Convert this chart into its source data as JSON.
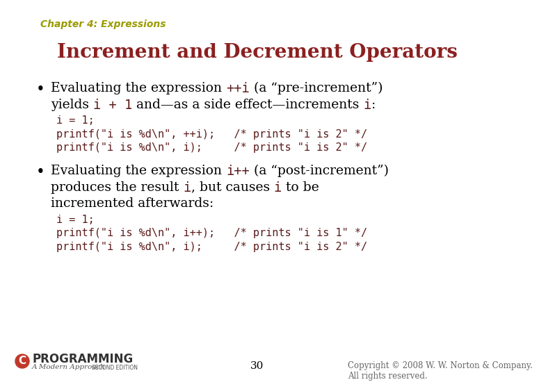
{
  "background_color": "#ffffff",
  "chapter_text": "Chapter 4: Expressions",
  "chapter_color": "#9B9B00",
  "title_text": "Increment and Decrement Operators",
  "title_color": "#8B2020",
  "text_color": "#000000",
  "code_color": "#5C1A1A",
  "body_fontsize": 13.5,
  "code_fontsize": 11.0,
  "chapter_fontsize": 10,
  "title_fontsize": 20,
  "footer_fontsize": 8.5,
  "page_num_fontsize": 11,
  "bullet1_line1_normal1": "Evaluating the expression ",
  "bullet1_line1_code": "++i",
  "bullet1_line1_normal2": " (a “pre-increment”)",
  "bullet1_line2_normal1": "yields ",
  "bullet1_line2_code1": "i + 1",
  "bullet1_line2_normal2": " and—as a side effect—increments ",
  "bullet1_line2_code2": "i",
  "bullet1_line2_normal3": ":",
  "code1": [
    "i = 1;",
    "printf(\"i is %d\\n\", ++i);   /* prints \"i is 2\" */",
    "printf(\"i is %d\\n\", i);     /* prints \"i is 2\" */"
  ],
  "bullet2_line1_normal1": "Evaluating the expression ",
  "bullet2_line1_code": "i++",
  "bullet2_line1_normal2": " (a “post-increment”)",
  "bullet2_line2_normal1": "produces the result ",
  "bullet2_line2_code1": "i",
  "bullet2_line2_normal2": ", but causes ",
  "bullet2_line2_code2": "i",
  "bullet2_line2_normal3": " to be",
  "bullet2_line3": "incremented afterwards:",
  "code2": [
    "i = 1;",
    "printf(\"i is %d\\n\", i++);   /* prints \"i is 1\" */",
    "printf(\"i is %d\\n\", i);     /* prints \"i is 2\" */"
  ],
  "page_number": "30",
  "copyright_text": "Copyright © 2008 W. W. Norton & Company.\nAll rights reserved."
}
